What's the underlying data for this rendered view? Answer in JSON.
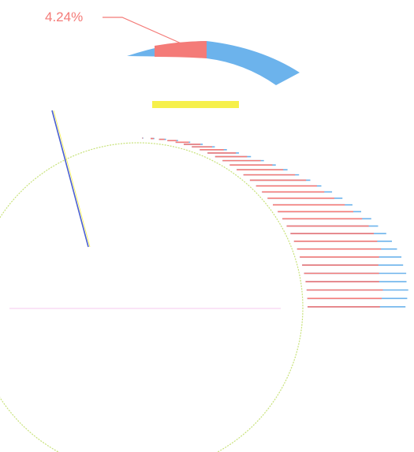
{
  "chart_data": {
    "type": "bar",
    "chart_style": "radial stacked bars (sunburst-like)",
    "colors": {
      "series_a": "#f47b78",
      "series_b": "#6cb3ec",
      "highlight": "#f6f04a",
      "ring_outline": "#c8e27a",
      "callout_line": "#f47b78",
      "spoke_blue": "#4a5fd0",
      "spoke_pink": "#f6c9ef"
    },
    "series": [
      {
        "color_key": "series_a",
        "values": [
          0.24,
          0.38,
          0.42,
          0.5,
          0.56,
          0.58,
          0.6,
          0.62,
          0.65,
          0.66,
          0.72,
          0.74,
          0.75,
          0.78,
          0.8,
          0.82,
          0.8,
          0.82,
          0.85,
          0.86,
          0.88,
          0.88,
          0.87,
          0.85,
          0.84,
          0.78,
          0.74,
          0.72,
          0.7,
          0.72,
          0.7,
          0.68
        ]
      },
      {
        "color_key": "series_b",
        "values": [
          0.4,
          0.48,
          0.54,
          0.58,
          0.62,
          0.66,
          0.68,
          0.7,
          0.72,
          0.74,
          0.78,
          0.8,
          0.82,
          0.84,
          0.86,
          0.88,
          0.9,
          0.92,
          0.94,
          0.95,
          0.98,
          0.98,
          1.0,
          1.0,
          1.0,
          1.0,
          0.98,
          0.98,
          0.96,
          0.96,
          0.94,
          0.92
        ]
      }
    ],
    "highlight_segment": {
      "value": 0.6
    },
    "annotation": {
      "text": "4.24%"
    }
  }
}
